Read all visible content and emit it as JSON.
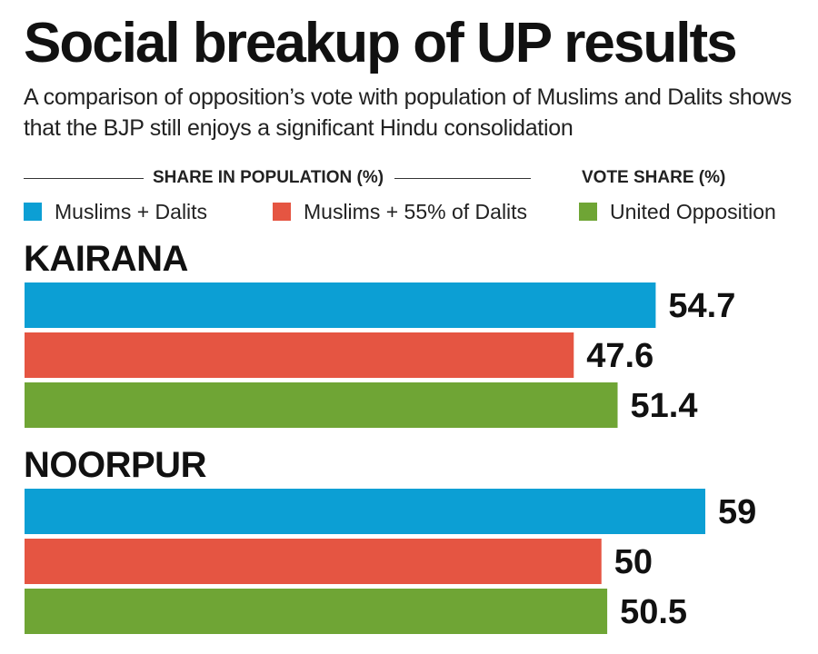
{
  "title": "Social breakup of UP results",
  "subtitle": "A comparison of opposition’s vote with population of Muslims and Dalits shows that the BJP still enjoys a significant Hindu consolidation",
  "legend": {
    "population_heading": "SHARE IN POPULATION (%)",
    "vote_heading": "VOTE SHARE (%)",
    "items": [
      {
        "label": "Muslims + Dalits",
        "color": "#0c9fd4"
      },
      {
        "label": "Muslims + 55% of Dalits",
        "color": "#e55542"
      },
      {
        "label": "United Opposition",
        "color": "#6fa535"
      }
    ]
  },
  "chart_data": {
    "type": "bar",
    "orientation": "horizontal",
    "title": "Social breakup of UP results",
    "groups": [
      "KAIRANA",
      "NOORPUR"
    ],
    "series": [
      {
        "name": "Muslims + Dalits",
        "color": "#0c9fd4",
        "values": [
          54.7,
          59
        ]
      },
      {
        "name": "Muslims + 55% of Dalits",
        "color": "#e55542",
        "values": [
          47.6,
          50
        ]
      },
      {
        "name": "United Opposition",
        "color": "#6fa535",
        "values": [
          51.4,
          50.5
        ]
      }
    ],
    "data_labels": [
      [
        "54.7",
        "47.6",
        "51.4"
      ],
      [
        "59",
        "50",
        "50.5"
      ]
    ],
    "xlim": [
      0,
      59
    ],
    "grid": false,
    "legend_position": "top"
  }
}
